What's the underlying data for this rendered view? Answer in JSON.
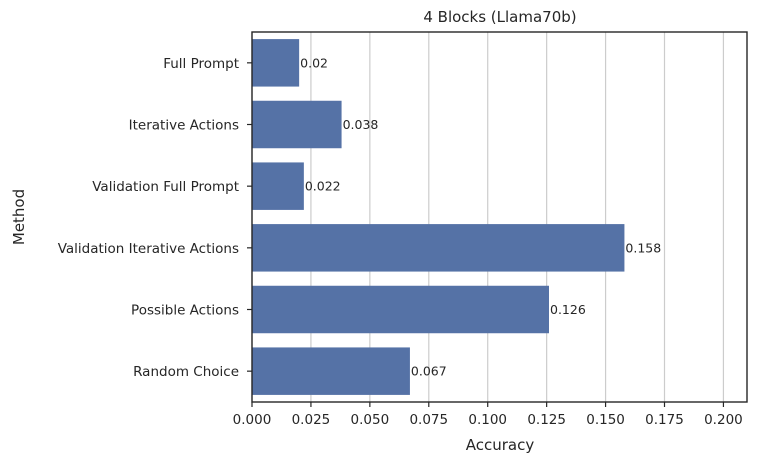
{
  "chart_data": {
    "type": "bar",
    "orientation": "horizontal",
    "title": "4 Blocks (Llama70b)",
    "xlabel": "Accuracy",
    "ylabel": "Method",
    "categories": [
      "Full Prompt",
      "Iterative Actions",
      "Validation Full Prompt",
      "Validation Iterative Actions",
      "Possible Actions",
      "Random Choice"
    ],
    "values": [
      0.02,
      0.038,
      0.022,
      0.158,
      0.126,
      0.067
    ],
    "data_labels": [
      "0.02",
      "0.038",
      "0.022",
      "0.158",
      "0.126",
      "0.067"
    ],
    "xlim": [
      0,
      0.21
    ],
    "xticks": [
      0.0,
      0.025,
      0.05,
      0.075,
      0.1,
      0.125,
      0.15,
      0.175,
      0.2
    ],
    "xtick_labels": [
      "0.000",
      "0.025",
      "0.050",
      "0.075",
      "0.100",
      "0.125",
      "0.150",
      "0.175",
      "0.200"
    ],
    "grid": "vertical",
    "bar_color": "#5572a6"
  }
}
